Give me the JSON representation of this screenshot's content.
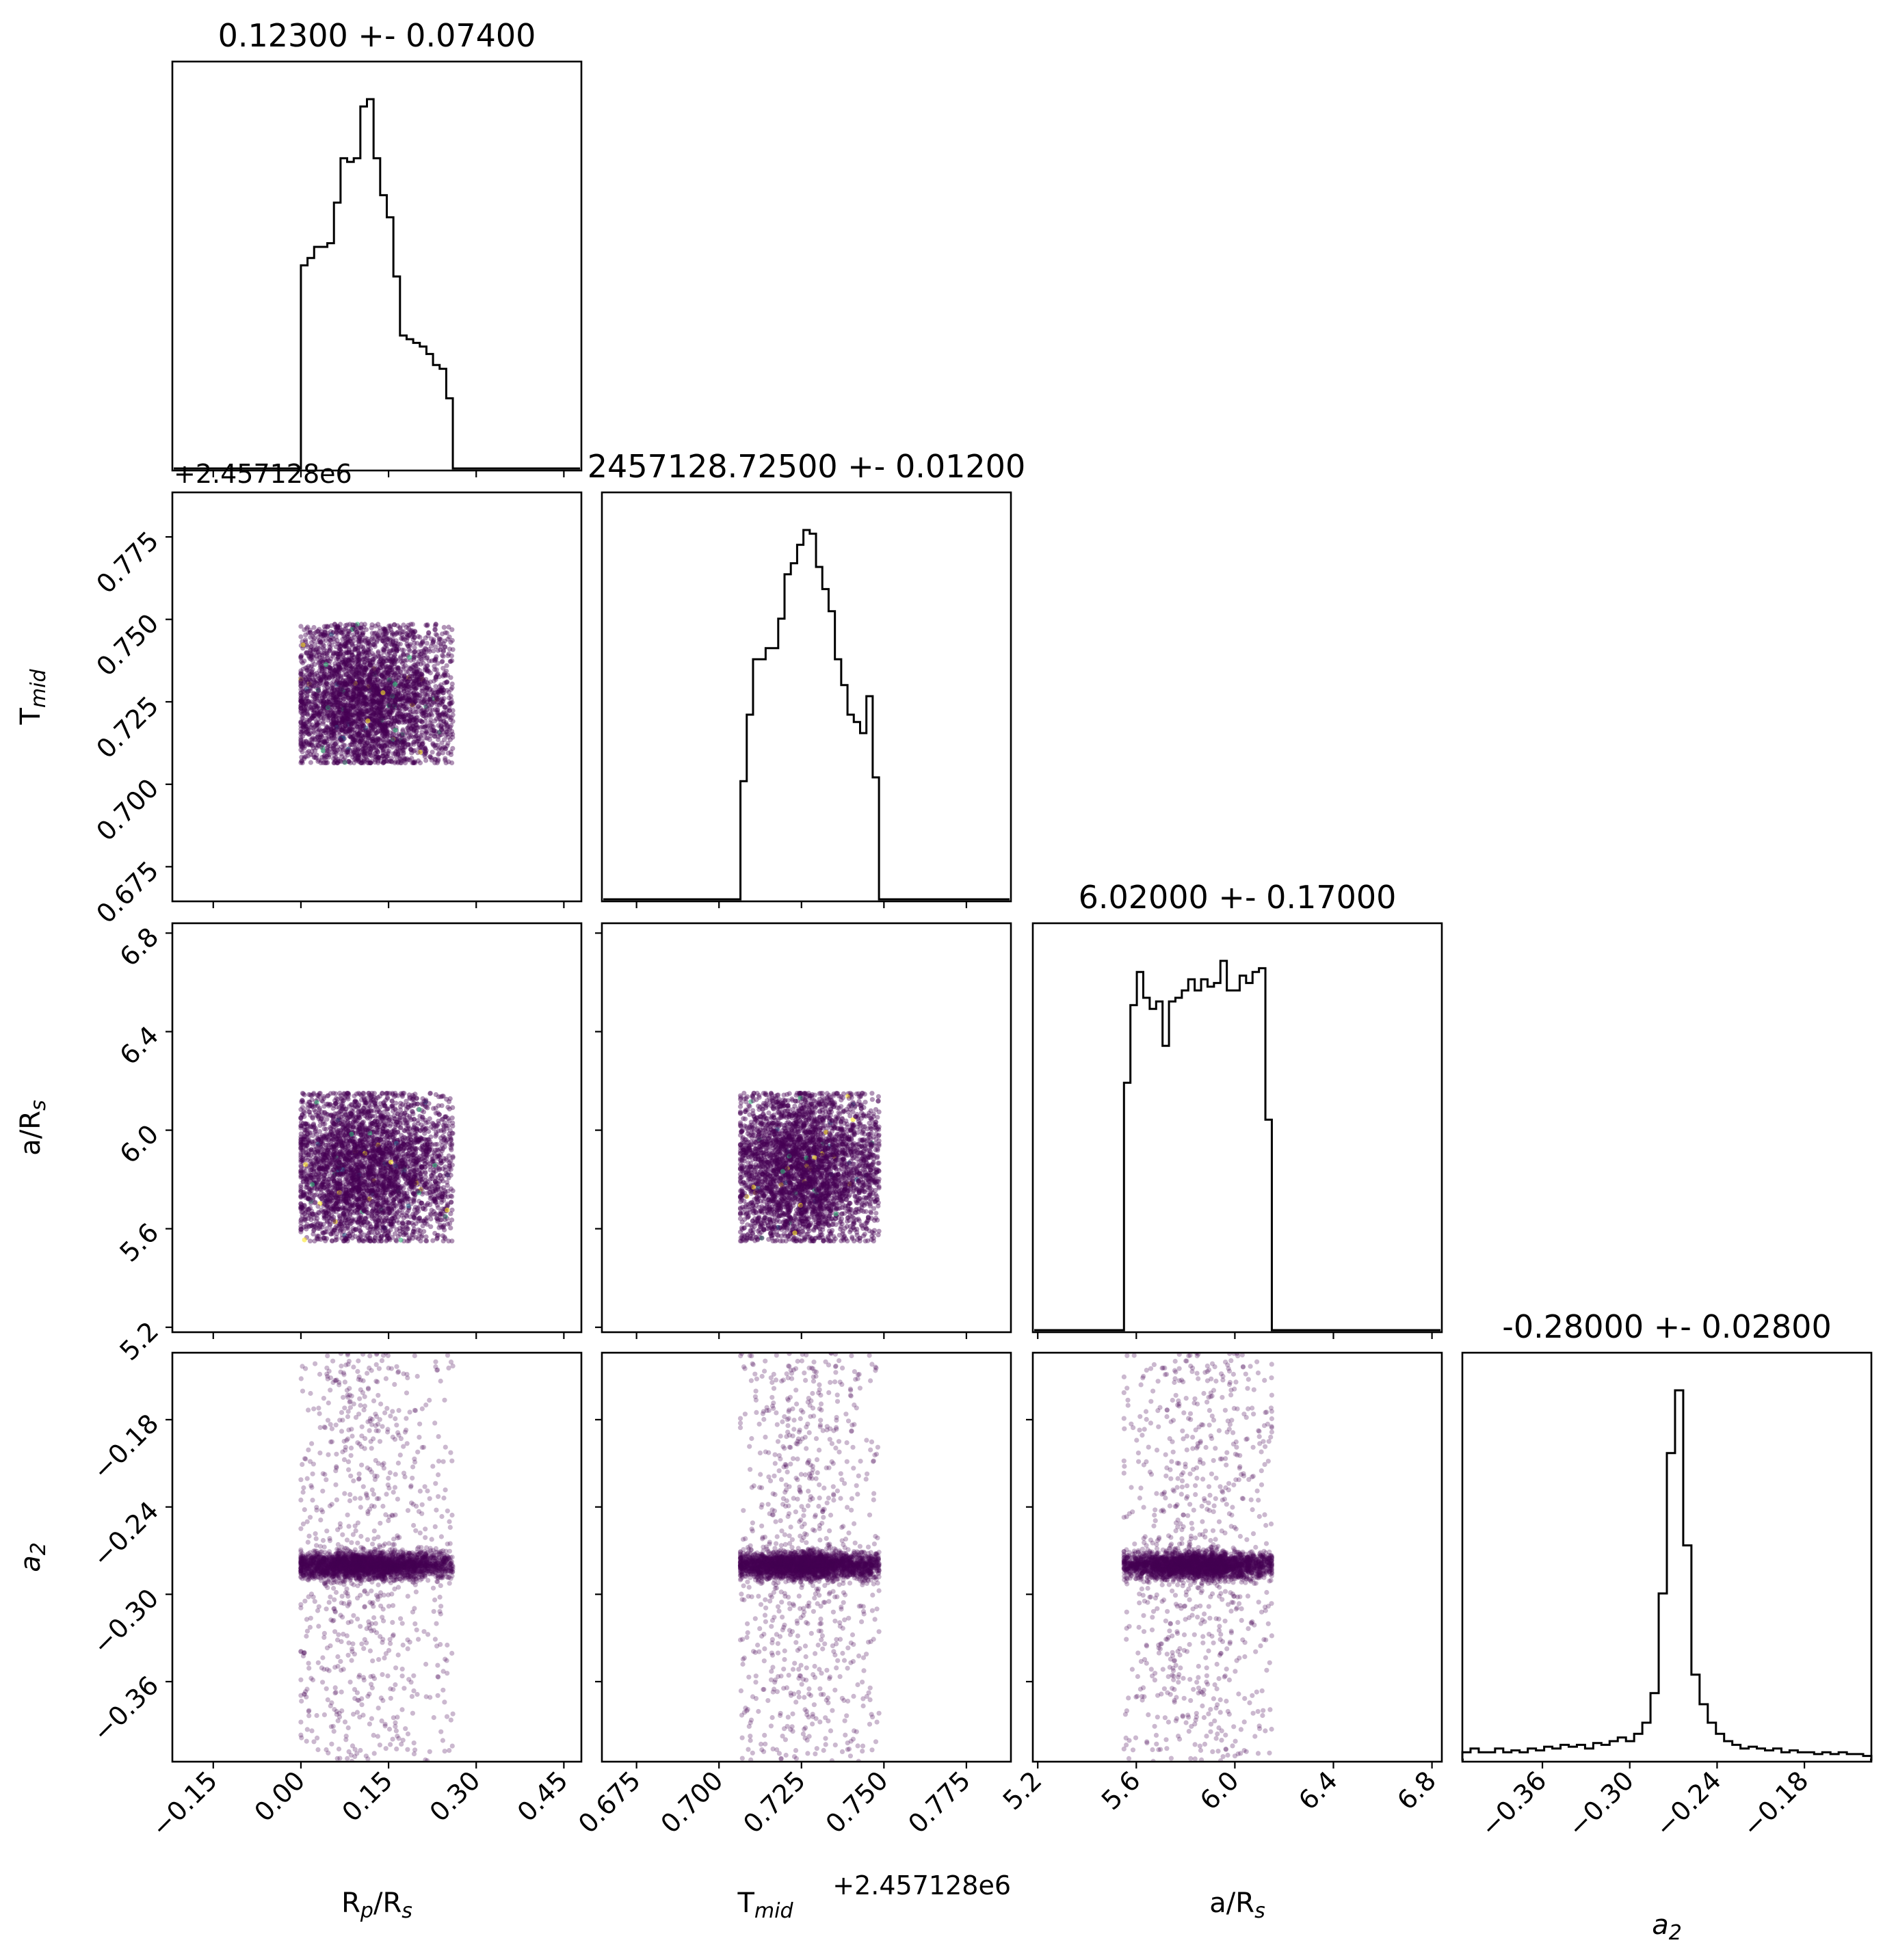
{
  "chart_data": {
    "type": "corner",
    "parameters": [
      {
        "label": "R_p/R_s",
        "title": "0.12300 +- 0.07400",
        "range": [
          -0.22,
          0.48
        ],
        "ticks": [
          -0.15,
          0.0,
          0.15,
          0.3,
          0.45
        ],
        "tick_labels": [
          "−0.15",
          "0.00",
          "0.15",
          "0.30",
          "0.45"
        ],
        "offset": "",
        "samples": {
          "min": 0.0,
          "max": 0.26,
          "mode": 0.105
        }
      },
      {
        "label": "T_mid",
        "title": "2457128.72500 +- 0.01200",
        "range": [
          0.6645,
          0.7885
        ],
        "ticks": [
          0.675,
          0.7,
          0.725,
          0.75,
          0.775
        ],
        "tick_labels": [
          "0.675",
          "0.700",
          "0.725",
          "0.750",
          "0.775"
        ],
        "offset": "+2.457128e6",
        "samples": {
          "min": 0.7065,
          "max": 0.7485,
          "mode": 0.725
        }
      },
      {
        "label": "a/R_s",
        "title": "6.02000 +- 0.17000",
        "range": [
          5.18,
          6.84
        ],
        "ticks": [
          5.2,
          5.6,
          6.0,
          6.4,
          6.8
        ],
        "tick_labels": [
          "5.2",
          "5.6",
          "6.0",
          "6.4",
          "6.8"
        ],
        "offset": "",
        "samples": {
          "min": 5.55,
          "max": 6.15,
          "mode": 5.85
        }
      },
      {
        "label": "a_2",
        "title": "-0.28000 +- 0.02800",
        "range": [
          -0.415,
          -0.134
        ],
        "ticks": [
          -0.36,
          -0.3,
          -0.24,
          -0.18
        ],
        "tick_labels": [
          "−0.36",
          "−0.30",
          "−0.24",
          "−0.18"
        ],
        "offset": "",
        "samples": {
          "min": -0.415,
          "max": -0.134,
          "mode": -0.28
        }
      }
    ],
    "histograms": [
      {
        "param": "R_p/R_s",
        "bins": [
          0.0,
          0.26
        ],
        "counts": [
          0.55,
          0.57,
          0.6,
          0.6,
          0.61,
          0.72,
          0.84,
          0.83,
          0.84,
          0.98,
          1.0,
          0.84,
          0.74,
          0.68,
          0.52,
          0.36,
          0.35,
          0.34,
          0.33,
          0.31,
          0.28,
          0.27,
          0.19
        ]
      },
      {
        "param": "T_mid",
        "bins": [
          0.7065,
          0.7485
        ],
        "counts": [
          0.32,
          0.5,
          0.65,
          0.65,
          0.68,
          0.68,
          0.76,
          0.88,
          0.91,
          0.96,
          1.0,
          0.99,
          0.9,
          0.84,
          0.78,
          0.65,
          0.58,
          0.5,
          0.48,
          0.45,
          0.55,
          0.33
        ]
      },
      {
        "param": "a/R_s",
        "bins": [
          5.55,
          6.15
        ],
        "counts": [
          0.67,
          0.88,
          0.97,
          0.9,
          0.87,
          0.89,
          0.77,
          0.89,
          0.9,
          0.92,
          0.95,
          0.92,
          0.95,
          0.93,
          0.94,
          1.0,
          0.92,
          0.92,
          0.96,
          0.94,
          0.97,
          0.98,
          0.57
        ]
      },
      {
        "param": "a_2",
        "bins": [
          -0.415,
          -0.134
        ],
        "counts": [
          0.02,
          0.03,
          0.02,
          0.02,
          0.03,
          0.02,
          0.025,
          0.02,
          0.03,
          0.025,
          0.035,
          0.03,
          0.04,
          0.035,
          0.04,
          0.03,
          0.045,
          0.04,
          0.05,
          0.06,
          0.05,
          0.07,
          0.1,
          0.18,
          0.45,
          0.83,
          1.0,
          0.58,
          0.23,
          0.15,
          0.1,
          0.07,
          0.05,
          0.04,
          0.03,
          0.035,
          0.03,
          0.025,
          0.03,
          0.02,
          0.025,
          0.02,
          0.02,
          0.015,
          0.02,
          0.015,
          0.02,
          0.015,
          0.015,
          0.01
        ]
      }
    ],
    "scatter": {
      "color": "#440154",
      "highlight_colors": [
        "#fde725",
        "#35b779",
        "#31688e"
      ],
      "n_points": 3500
    }
  }
}
